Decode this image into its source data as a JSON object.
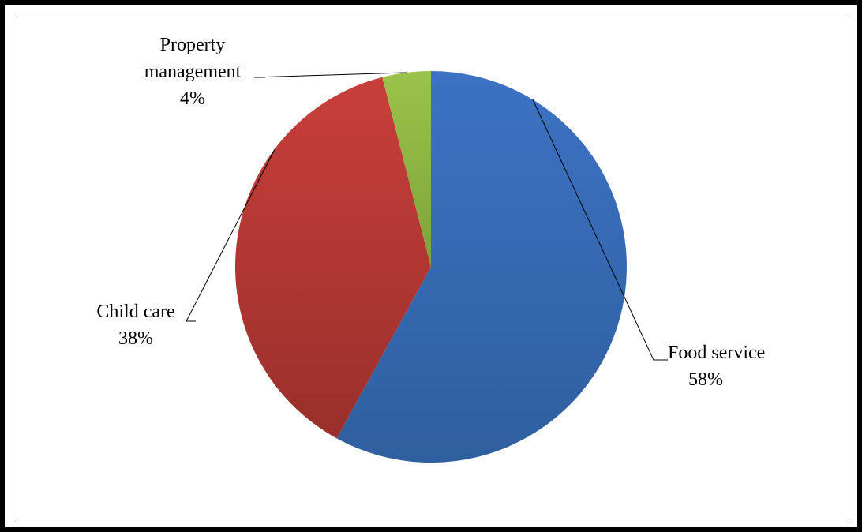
{
  "chart_data": {
    "type": "pie",
    "title": "",
    "slices": [
      {
        "label_lines": [
          "Food service"
        ],
        "percent_text": "58%",
        "value": 58,
        "color": "#3d72c4",
        "color_dark": "#2f5f9e"
      },
      {
        "label_lines": [
          "Child care"
        ],
        "percent_text": "38%",
        "value": 38,
        "color": "#c83f3b",
        "color_dark": "#9a2f2b"
      },
      {
        "label_lines": [
          "Property",
          "management"
        ],
        "percent_text": "4%",
        "value": 4,
        "color": "#9bc34a",
        "color_dark": "#7ea23a"
      }
    ],
    "legend": "none"
  }
}
